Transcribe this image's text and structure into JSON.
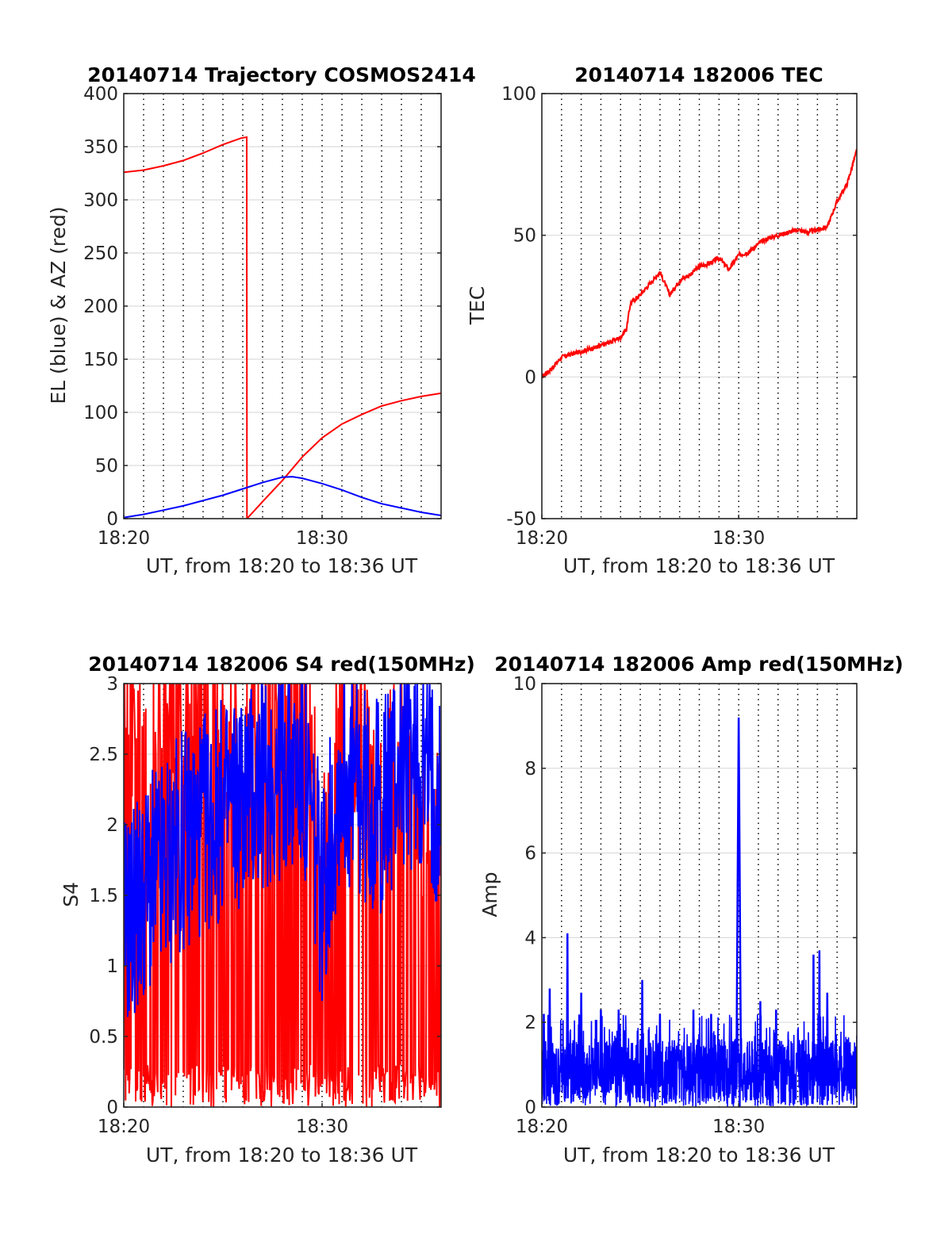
{
  "figure": {
    "background": "#ffffff"
  },
  "chart_data": [
    {
      "type": "line",
      "title": "20140714 Trajectory COSMOS2414",
      "xlabel": "UT, from 18:20 to 18:36 UT",
      "ylabel": "EL (blue) & AZ (red)",
      "xlim_min": [
        0,
        16
      ],
      "x_ticks": [
        {
          "label": "18:20",
          "value": 0
        },
        {
          "label": "18:30",
          "value": 10
        }
      ],
      "minor_x_grid_dotted_every_min": 1,
      "ylim": [
        0,
        400
      ],
      "y_ticks": [
        0,
        50,
        100,
        150,
        200,
        250,
        300,
        350,
        400
      ],
      "grid": true,
      "series": [
        {
          "color": "#ff0000",
          "x": [
            0,
            1,
            2,
            3,
            4,
            5,
            5.9,
            6.2,
            6.21,
            7,
            8,
            9,
            10,
            11,
            12,
            13,
            14,
            15,
            16
          ],
          "values": [
            326,
            328,
            332,
            337,
            344,
            352,
            358,
            359,
            0,
            16,
            36,
            58,
            76,
            89,
            98,
            106,
            111,
            115,
            118
          ]
        },
        {
          "color": "#0000ff",
          "x": [
            0,
            1,
            2,
            3,
            4,
            5,
            6,
            7,
            8,
            8.5,
            9,
            10,
            11,
            12,
            13,
            14,
            15,
            16
          ],
          "values": [
            1,
            4,
            8,
            12,
            17,
            22,
            28,
            34,
            39,
            39.5,
            38,
            33,
            27,
            20,
            14,
            10,
            6,
            3
          ]
        }
      ]
    },
    {
      "type": "line",
      "title": "20140714 182006 TEC",
      "xlabel": "UT, from 18:20 to 18:36 UT",
      "ylabel": "TEC",
      "xlim_min": [
        0,
        16
      ],
      "x_ticks": [
        {
          "label": "18:20",
          "value": 0
        },
        {
          "label": "18:30",
          "value": 10
        }
      ],
      "minor_x_grid_dotted_every_min": 1,
      "ylim": [
        -50,
        100
      ],
      "y_ticks": [
        -50,
        0,
        50,
        100
      ],
      "grid": true,
      "series": [
        {
          "color": "#ff0000",
          "x": [
            0,
            0.5,
            1,
            1.5,
            2,
            3,
            4,
            4.3,
            4.5,
            5,
            5.5,
            6,
            6.5,
            7,
            7.5,
            8,
            8.5,
            9,
            9.5,
            10,
            10.5,
            11,
            11.5,
            12,
            12.5,
            13,
            13.5,
            14,
            14.5,
            15,
            15.5,
            16
          ],
          "values": [
            0,
            3,
            7,
            8,
            9,
            11,
            14,
            17,
            26,
            29,
            33,
            37,
            29,
            34,
            36,
            39,
            40,
            42,
            38,
            43,
            44,
            47,
            49,
            50,
            51,
            52,
            51,
            52,
            53,
            62,
            68,
            80
          ]
        }
      ]
    },
    {
      "type": "line",
      "title": "20140714 182006 S4 red(150MHz)",
      "xlabel": "UT, from 18:20 to 18:36 UT",
      "ylabel": "S4",
      "xlim_min": [
        0,
        16
      ],
      "x_ticks": [
        {
          "label": "18:20",
          "value": 0
        },
        {
          "label": "18:30",
          "value": 10
        }
      ],
      "minor_x_grid_dotted_every_min": 1,
      "ylim": [
        0,
        3
      ],
      "y_ticks": [
        0,
        0.5,
        1,
        1.5,
        2,
        2.5,
        3
      ],
      "grid": true,
      "series": [
        {
          "color": "#ff0000",
          "note_range": [
            0,
            3
          ],
          "x": [
            0,
            1,
            2,
            3,
            4,
            5,
            6,
            7,
            8,
            9,
            10,
            11,
            12,
            13,
            14,
            15,
            16
          ],
          "values": [
            2.2,
            1.8,
            2.4,
            2.0,
            2.6,
            2.2,
            2.0,
            2.4,
            2.8,
            2.5,
            1.3,
            2.2,
            2.0,
            1.6,
            2.2,
            1.4,
            1.9
          ]
        },
        {
          "color": "#0000ff",
          "x": [
            0,
            1,
            2,
            3,
            4,
            5,
            6,
            7,
            8,
            9,
            10,
            11,
            12,
            13,
            14,
            15,
            16
          ],
          "values": [
            1.3,
            1.5,
            1.7,
            1.9,
            2.0,
            2.1,
            2.2,
            2.3,
            2.4,
            2.4,
            1.5,
            2.4,
            2.2,
            2.1,
            2.5,
            2.4,
            2.2
          ]
        }
      ]
    },
    {
      "type": "line",
      "title": "20140714 182006 Amp red(150MHz)",
      "xlabel": "UT, from 18:20 to 18:36 UT",
      "ylabel": "Amp",
      "xlim_min": [
        0,
        16
      ],
      "x_ticks": [
        {
          "label": "18:20",
          "value": 0
        },
        {
          "label": "18:30",
          "value": 10
        }
      ],
      "minor_x_grid_dotted_every_min": 1,
      "ylim": [
        0,
        10
      ],
      "y_ticks": [
        0,
        2,
        4,
        6,
        8,
        10
      ],
      "grid": true,
      "series": [
        {
          "color": "#0000ff",
          "x": [
            0.1,
            0.4,
            1.3,
            2.0,
            3.0,
            3.9,
            5.1,
            6.0,
            7.7,
            8.6,
            10.0,
            11.1,
            11.9,
            13.8,
            14.1,
            14.5,
            15.5
          ],
          "values": [
            2.2,
            2.8,
            4.1,
            2.7,
            2.3,
            2.3,
            3.0,
            2.2,
            2.3,
            2.2,
            9.2,
            2.5,
            2.3,
            3.6,
            3.7,
            2.7,
            1.6
          ]
        }
      ]
    }
  ]
}
